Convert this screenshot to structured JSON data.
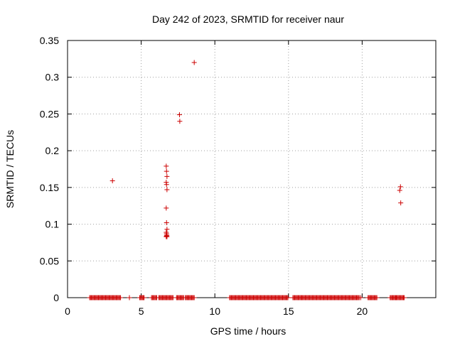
{
  "chart_data": {
    "type": "scatter",
    "title": "Day 242 of 2023, SRMTID for receiver naur",
    "xlabel": "GPS time / hours",
    "ylabel": "SRMTID / TECUs",
    "xlim": [
      0,
      25
    ],
    "ylim": [
      0,
      0.35
    ],
    "xticks": [
      0,
      5,
      10,
      15,
      20
    ],
    "yticks": [
      0,
      0.05,
      0.1,
      0.15,
      0.2,
      0.25,
      0.3,
      0.35
    ],
    "grid": true,
    "legend": "none",
    "marker": "+",
    "color": "#cc0000",
    "series": [
      {
        "x": [
          3.05,
          6.7,
          6.72,
          6.75,
          6.7,
          6.72,
          6.75,
          6.7,
          6.72,
          6.75,
          6.7,
          6.72,
          6.74,
          6.7,
          6.72,
          6.75,
          7.6,
          7.62,
          8.6,
          22.55,
          22.6,
          22.62
        ],
        "y": [
          0.159,
          0.179,
          0.172,
          0.165,
          0.157,
          0.154,
          0.147,
          0.122,
          0.102,
          0.093,
          0.089,
          0.087,
          0.085,
          0.083,
          0.084,
          0.083,
          0.249,
          0.24,
          0.32,
          0.146,
          0.151,
          0.129
        ]
      },
      {
        "x_ranges": [
          [
            1.5,
            3.6
          ],
          [
            4.9,
            5.2
          ],
          [
            5.7,
            6.1
          ],
          [
            6.2,
            7.2
          ],
          [
            7.4,
            7.9
          ],
          [
            8.0,
            8.6
          ],
          [
            11.0,
            15.0
          ],
          [
            15.3,
            19.8
          ],
          [
            20.4,
            21.0
          ],
          [
            21.9,
            22.9
          ]
        ],
        "x_extra": [
          4.2,
          4.9,
          15.9,
          19.9,
          22.3,
          22.8
        ],
        "y": 0
      }
    ]
  }
}
